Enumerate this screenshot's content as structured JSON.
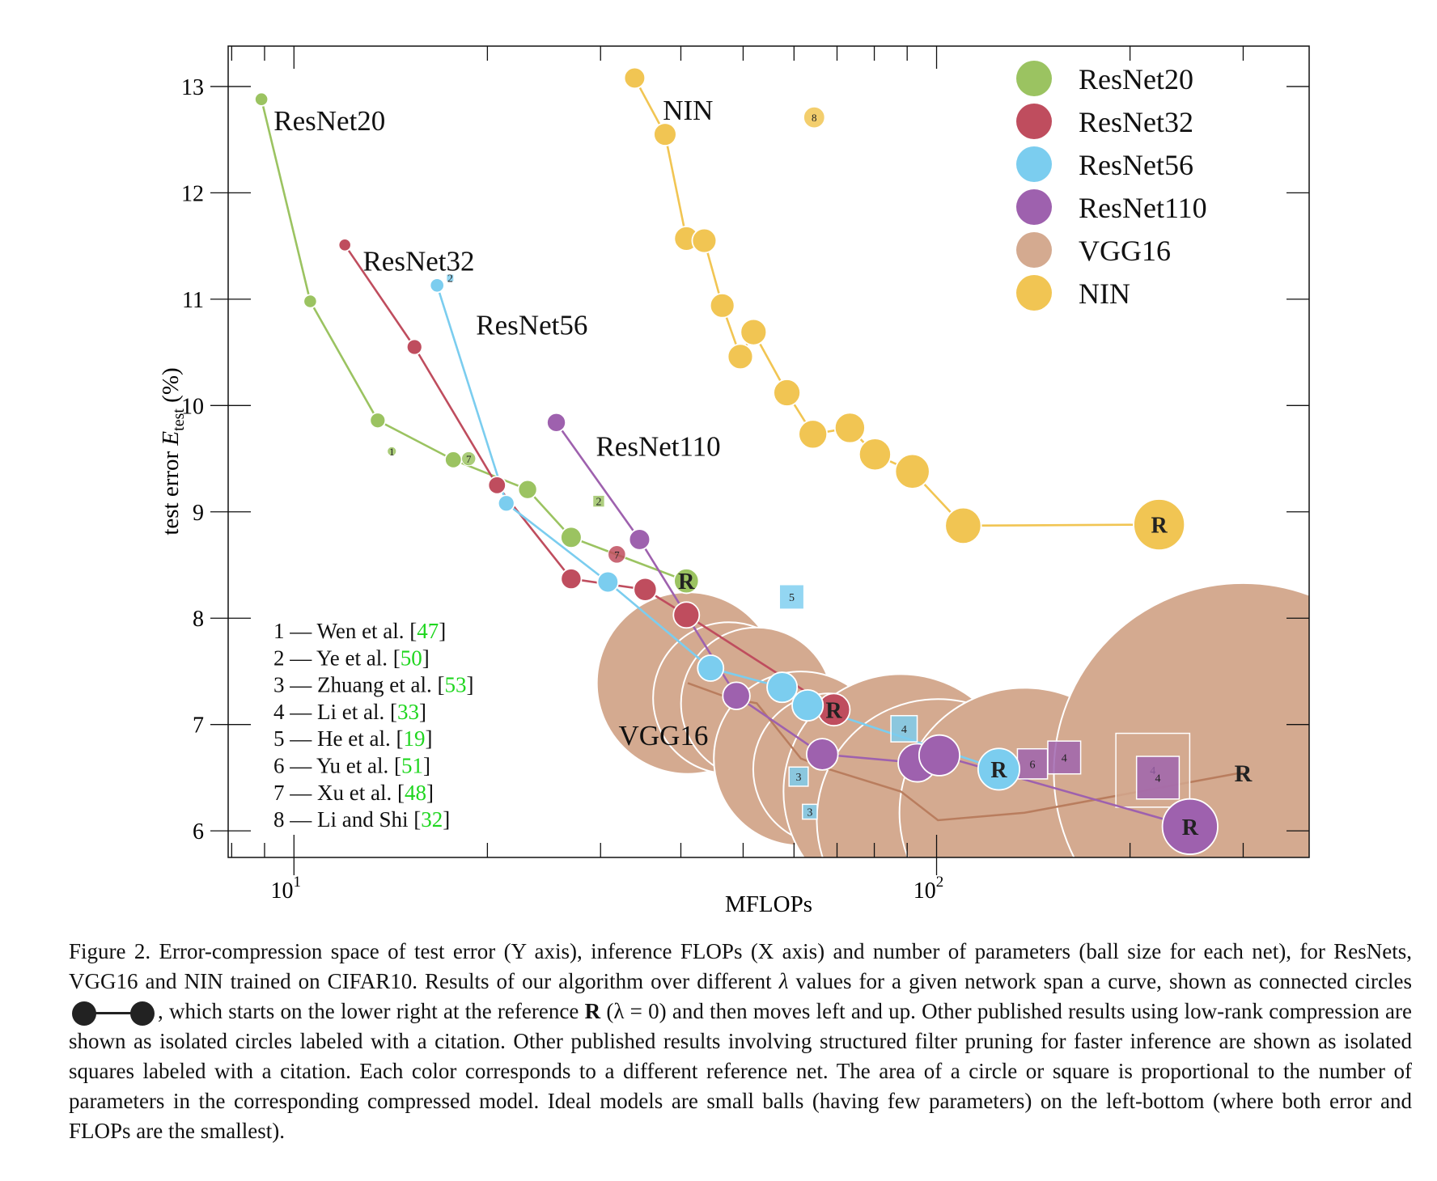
{
  "chart_data": {
    "type": "scatter",
    "x_scale": "log",
    "xlim": [
      7.9,
      380
    ],
    "ylim": [
      5.75,
      13.38
    ],
    "xlabel": "MFLOPs",
    "ylabel_main": "test error ",
    "ylabel_var": "E",
    "ylabel_sub": "test",
    "ylabel_unit": " (%)",
    "x_ticks": [
      {
        "value": 10,
        "base": "10",
        "exp": "1"
      },
      {
        "value": 100,
        "base": "10",
        "exp": "2"
      }
    ],
    "y_ticks": [
      6,
      7,
      8,
      9,
      10,
      11,
      12,
      13
    ],
    "legend_position": "top-right",
    "reference_label": "R",
    "series": [
      {
        "name": "ResNet20",
        "color": "#9bc361",
        "x": [
          8.9,
          10.6,
          13.5,
          17.7,
          23.1,
          27,
          40.8
        ],
        "y": [
          12.88,
          10.98,
          9.86,
          9.49,
          9.21,
          8.76,
          8.35
        ],
        "size": [
          0.2,
          0.2,
          0.25,
          0.28,
          0.33,
          0.38,
          0.47
        ],
        "reference_index": 6
      },
      {
        "name": "ResNet32",
        "color": "#bf4d5e",
        "x": [
          12,
          15.4,
          20.7,
          27,
          35.2,
          40.8,
          69.2
        ],
        "y": [
          11.51,
          10.55,
          9.25,
          8.37,
          8.27,
          8.03,
          7.14
        ],
        "size": [
          0.18,
          0.25,
          0.3,
          0.37,
          0.43,
          0.5,
          0.65
        ],
        "reference_index": 6
      },
      {
        "name": "ResNet56",
        "color": "#7bcdef",
        "x": [
          16.7,
          21.4,
          30.8,
          44.5,
          57.5,
          63,
          125
        ],
        "y": [
          11.13,
          9.08,
          8.34,
          7.53,
          7.35,
          7.18,
          6.58
        ],
        "size": [
          0.22,
          0.27,
          0.38,
          0.5,
          0.6,
          0.62,
          0.87
        ],
        "reference_index": 6
      },
      {
        "name": "ResNet110",
        "color": "#9e61ae",
        "x": [
          25.6,
          34.5,
          48.8,
          66.4,
          93.3,
          101,
          248
        ],
        "y": [
          9.84,
          8.74,
          7.27,
          6.72,
          6.64,
          6.71,
          6.04
        ],
        "size": [
          0.33,
          0.38,
          0.53,
          0.63,
          0.79,
          0.85,
          1.2
        ],
        "reference_index": 6
      },
      {
        "name": "VGG16",
        "color": "#b97d5e",
        "fill": "#d4aa90",
        "marker_outline": "#ffffff",
        "x": [
          41,
          47.5,
          52.5,
          61.5,
          68,
          88,
          100.5,
          137,
          300
        ],
        "y": [
          7.39,
          7.25,
          7.2,
          6.68,
          6.58,
          6.37,
          6.1,
          6.17,
          6.55
        ],
        "size": [
          2.4,
          2.0,
          2.0,
          2.3,
          2.0,
          3.1,
          3.2,
          3.3,
          5.0
        ],
        "reference_index": 8
      },
      {
        "name": "NIN",
        "color": "#f1c553",
        "x": [
          33.9,
          37.8,
          40.8,
          43.5,
          46.4,
          49.5,
          51.9,
          58.5,
          64.2,
          73.3,
          80.2,
          91.7,
          110,
          222
        ],
        "y": [
          13.08,
          12.55,
          11.57,
          11.55,
          10.94,
          10.46,
          10.69,
          10.12,
          9.73,
          9.79,
          9.54,
          9.38,
          8.87,
          8.88
        ],
        "size": [
          0.38,
          0.42,
          0.46,
          0.46,
          0.46,
          0.48,
          0.5,
          0.52,
          0.56,
          0.6,
          0.64,
          0.7,
          0.74,
          1.1
        ],
        "reference_index": 13
      }
    ],
    "series_labels": [
      {
        "text": "ResNet20",
        "x": 9.3,
        "y": 12.68
      },
      {
        "text": "ResNet32",
        "x": 12.8,
        "y": 11.36
      },
      {
        "text": "ResNet56",
        "x": 19.2,
        "y": 10.76
      },
      {
        "text": "ResNet110",
        "x": 29.5,
        "y": 9.62
      },
      {
        "text": "VGG16",
        "x": 32,
        "y": 6.9
      },
      {
        "text": "NIN",
        "x": 37.5,
        "y": 12.78
      }
    ],
    "published_circles": [
      {
        "label": "1",
        "series": "ResNet20",
        "x": 14.2,
        "y": 9.57,
        "size": 0.1
      },
      {
        "label": "7",
        "series": "ResNet20",
        "x": 18.7,
        "y": 9.5,
        "size": 0.22
      },
      {
        "label": "7",
        "series": "ResNet32",
        "x": 31.8,
        "y": 8.6,
        "size": 0.3
      },
      {
        "label": "8",
        "series": "NIN",
        "x": 64.5,
        "y": 12.71,
        "size": 0.38
      }
    ],
    "published_squares": [
      {
        "label": "2",
        "series": "ResNet20",
        "x": 29.8,
        "y": 9.1,
        "size": 0.22
      },
      {
        "label": "2",
        "series": "ResNet56",
        "x": 17.5,
        "y": 11.2,
        "size": 0.14
      },
      {
        "label": "5",
        "series": "ResNet56",
        "x": 59.5,
        "y": 8.2,
        "size": 0.45
      },
      {
        "label": "4",
        "series": "ResNet56",
        "x": 89,
        "y": 6.96,
        "size": 0.48
      },
      {
        "label": "3",
        "series": "ResNet56",
        "x": 61,
        "y": 6.51,
        "size": 0.35
      },
      {
        "label": "3",
        "series": "ResNet56",
        "x": 63.5,
        "y": 6.18,
        "size": 0.27
      },
      {
        "label": "6",
        "series": "ResNet110",
        "x": 141,
        "y": 6.63,
        "size": 0.55
      },
      {
        "label": "4",
        "series": "ResNet110",
        "x": 158,
        "y": 6.69,
        "size": 0.6
      },
      {
        "label": "4",
        "series": "VGG16",
        "x": 217,
        "y": 6.57,
        "size": 1.35
      },
      {
        "label": "4",
        "series": "ResNet110",
        "x": 221,
        "y": 6.5,
        "size": 0.78
      }
    ],
    "citation_legend": [
      {
        "num": "1",
        "author": "Wen et al.",
        "ref": "47"
      },
      {
        "num": "2",
        "author": "Ye et al.",
        "ref": "50"
      },
      {
        "num": "3",
        "author": "Zhuang et al.",
        "ref": "53"
      },
      {
        "num": "4",
        "author": "Li et al.",
        "ref": "33"
      },
      {
        "num": "5",
        "author": "He et al.",
        "ref": "19"
      },
      {
        "num": "6",
        "author": "Yu et al.",
        "ref": "51"
      },
      {
        "num": "7",
        "author": "Xu et al.",
        "ref": "48"
      },
      {
        "num": "8",
        "author": "Li and Shi",
        "ref": "32"
      }
    ],
    "citation_color": "#1fd61f"
  },
  "caption": {
    "part1": "Figure 2. Error-compression space of test error (Y axis), inference FLOPs (X axis) and number of parameters (ball size for each net), for ResNets, VGG16 and NIN trained on CIFAR10. Results of our algorithm over different ",
    "lambda": "λ",
    "part2": " values for a given network span a curve, shown as connected circles",
    "part3": ", which starts on the lower right at the reference ",
    "ref_bold": "R",
    "part4": " (λ = 0) and then moves left and up.  Other published results using low-rank compression are shown as isolated circles labeled with a citation. Other published results involving structured filter pruning for faster inference are shown as isolated squares labeled with a citation. Each color corresponds to a different reference net. The area of a circle or square is proportional to the number of parameters in the corresponding compressed model. Ideal models are small balls (having few parameters) on the left-bottom (where both error and FLOPs are the smallest)."
  }
}
